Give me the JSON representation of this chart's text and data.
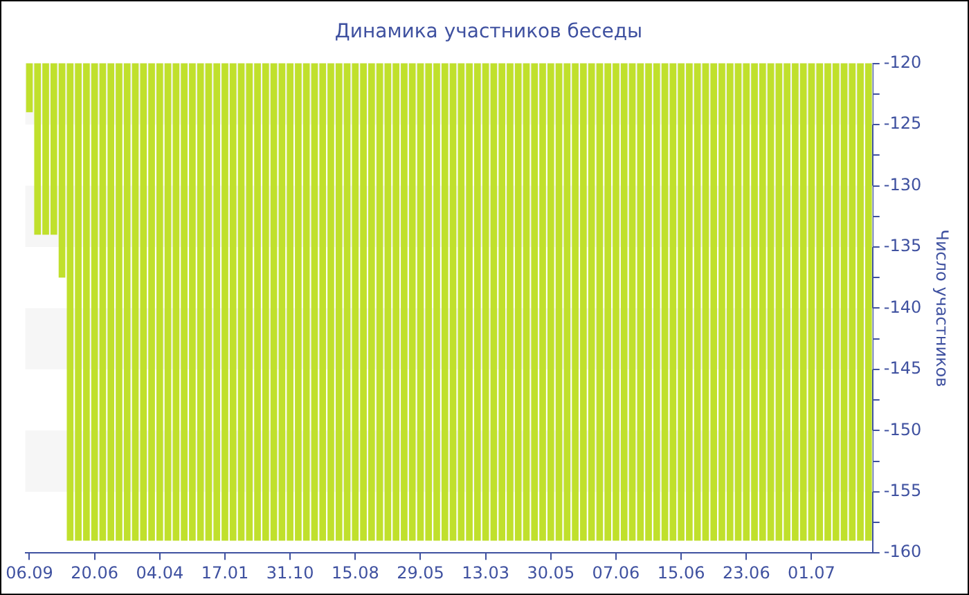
{
  "chart_data": {
    "type": "bar",
    "title": "Динамика участников беседы",
    "ylabel": "Число участников",
    "categories": [
      "06.09",
      null,
      null,
      null,
      null,
      null,
      null,
      null,
      "20.06",
      null,
      null,
      null,
      null,
      null,
      null,
      null,
      "04.04",
      null,
      null,
      null,
      null,
      null,
      null,
      null,
      "17.01",
      null,
      null,
      null,
      null,
      null,
      null,
      null,
      "31.10",
      null,
      null,
      null,
      null,
      null,
      null,
      null,
      "15.08",
      null,
      null,
      null,
      null,
      null,
      null,
      null,
      "29.05",
      null,
      null,
      null,
      null,
      null,
      null,
      null,
      "13.03",
      null,
      null,
      null,
      null,
      null,
      null,
      null,
      "30.05",
      null,
      null,
      null,
      null,
      null,
      null,
      null,
      "07.06",
      null,
      null,
      null,
      null,
      null,
      null,
      null,
      "15.06",
      null,
      null,
      null,
      null,
      null,
      null,
      null,
      "23.06",
      null,
      null,
      null,
      null,
      null,
      null,
      null,
      "01.07",
      null,
      null,
      null,
      null,
      null,
      null,
      null
    ],
    "values": [
      -124,
      -134,
      -134,
      -134,
      -137.5,
      -159,
      -159,
      -159,
      -159,
      -159,
      -159,
      -159,
      -159,
      -159,
      -159,
      -159,
      -159,
      -159,
      -159,
      -159,
      -159,
      -159,
      -159,
      -159,
      -159,
      -159,
      -159,
      -159,
      -159,
      -159,
      -159,
      -159,
      -159,
      -159,
      -159,
      -159,
      -159,
      -159,
      -159,
      -159,
      -159,
      -159,
      -159,
      -159,
      -159,
      -159,
      -159,
      -159,
      -159,
      -159,
      -159,
      -159,
      -159,
      -159,
      -159,
      -159,
      -159,
      -159,
      -159,
      -159,
      -159,
      -159,
      -159,
      -159,
      -159,
      -159,
      -159,
      -159,
      -159,
      -159,
      -159,
      -159,
      -159,
      -159,
      -159,
      -159,
      -159,
      -159,
      -159,
      -159,
      -159,
      -159,
      -159,
      -159,
      -159,
      -159,
      -159,
      -159,
      -159,
      -159,
      -159,
      -159,
      -159,
      -159,
      -159,
      -159,
      -159,
      -159,
      -159,
      -159,
      -159,
      -159,
      -159,
      -159
    ],
    "color": "#c0e02c",
    "ylim": [
      -160,
      -120
    ],
    "yticks": [
      -160,
      {
        "value": -157.5,
        "label": null
      },
      -155,
      {
        "value": -152.5,
        "label": null
      },
      -150,
      {
        "value": -147.5,
        "label": null
      },
      -145,
      {
        "value": -142.5,
        "label": null
      },
      -140,
      {
        "value": -137.5,
        "label": null
      },
      -135,
      {
        "value": -132.5,
        "label": null
      },
      -130,
      {
        "value": -127.5,
        "label": null
      },
      -125,
      {
        "value": -122.5,
        "label": null
      },
      -120
    ],
    "bands": [
      {
        "axis": "y",
        "from": -125,
        "to": -120,
        "color": "#f6f6f6"
      },
      {
        "axis": "y",
        "from": -135,
        "to": -130,
        "color": "#f6f6f6"
      },
      {
        "axis": "y",
        "from": -145,
        "to": -140,
        "color": "#f6f6f6"
      },
      {
        "axis": "y",
        "from": -155,
        "to": -150,
        "color": "#f6f6f6"
      }
    ],
    "grid": false,
    "legend": false
  }
}
